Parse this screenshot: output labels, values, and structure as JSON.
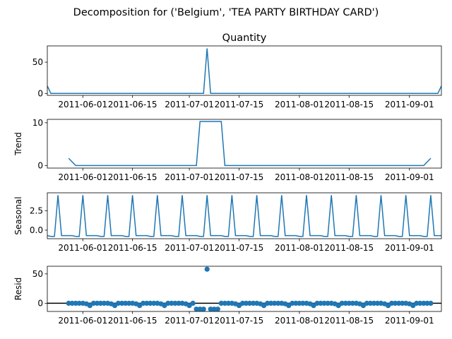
{
  "figure": {
    "suptitle": "Decomposition for ('Belgium', 'TEA PARTY BIRTHDAY CARD')",
    "series_color": "#1f77b4",
    "zero_line_color": "#000000"
  },
  "chart_data": [
    {
      "type": "line",
      "title": "Quantity",
      "ylabel": "",
      "x": [
        "2011-05-22",
        "2011-05-24",
        "2011-07-05",
        "2011-07-07",
        "2011-09-08",
        "2011-09-10"
      ],
      "values": [
        12,
        0,
        0,
        72,
        0,
        0
      ],
      "x_exact": [
        "2011-05-22",
        "2011-05-23",
        "2011-07-05",
        "2011-07-06",
        "2011-07-07",
        "2011-09-09",
        "2011-09-10"
      ],
      "values_exact": [
        12,
        0,
        0,
        72,
        0,
        0,
        12
      ],
      "ylim": [
        -3,
        76
      ],
      "yticks": [
        0,
        50
      ],
      "xticks": [
        "2011-06-01",
        "2011-06-15",
        "2011-07-01",
        "2011-07-15",
        "2011-08-01",
        "2011-08-15",
        "2011-09-01"
      ]
    },
    {
      "type": "line",
      "title": "",
      "ylabel": "Trend",
      "x": [
        "2011-05-28",
        "2011-05-30",
        "2011-07-03",
        "2011-07-04",
        "2011-07-10",
        "2011-07-11",
        "2011-09-05",
        "2011-09-07"
      ],
      "values": [
        1.7,
        0,
        0,
        10.3,
        10.3,
        0,
        0,
        1.7
      ],
      "ylim": [
        -0.6,
        10.8
      ],
      "yticks": [
        0,
        10
      ],
      "xticks": [
        "2011-06-01",
        "2011-06-15",
        "2011-07-01",
        "2011-07-15",
        "2011-08-01",
        "2011-08-15",
        "2011-09-01"
      ]
    },
    {
      "type": "line",
      "title": "",
      "ylabel": "Seasonal",
      "period_days": 7,
      "pattern": [
        -0.7,
        -0.7,
        -0.7,
        -0.7,
        -0.8,
        -0.8,
        4.5
      ],
      "first_peak": "2011-06-01",
      "start": "2011-05-22",
      "end": "2011-09-10",
      "ylim": [
        -1.1,
        4.8
      ],
      "yticks": [
        0.0,
        2.5
      ],
      "ytick_labels": [
        "0.0",
        "2.5"
      ],
      "xticks": [
        "2011-06-01",
        "2011-06-15",
        "2011-07-01",
        "2011-07-15",
        "2011-08-01",
        "2011-08-15",
        "2011-09-01"
      ]
    },
    {
      "type": "scatter",
      "title": "",
      "ylabel": "Resid",
      "start": "2011-05-28",
      "end": "2011-09-07",
      "period_days": 7,
      "pattern": [
        0,
        0,
        0,
        0,
        0,
        -1,
        -4
      ],
      "overrides": [
        {
          "x": "2011-07-03",
          "y": -10
        },
        {
          "x": "2011-07-04",
          "y": -10
        },
        {
          "x": "2011-07-05",
          "y": -10
        },
        {
          "x": "2011-07-06",
          "y": 58
        },
        {
          "x": "2011-07-07",
          "y": -10
        },
        {
          "x": "2011-07-08",
          "y": -10
        },
        {
          "x": "2011-07-09",
          "y": -10
        }
      ],
      "ylim": [
        -14,
        63
      ],
      "yticks": [
        0,
        50
      ],
      "zero_line": true,
      "xticks": [
        "2011-06-01",
        "2011-06-15",
        "2011-07-01",
        "2011-07-15",
        "2011-08-01",
        "2011-08-15",
        "2011-09-01"
      ]
    }
  ]
}
